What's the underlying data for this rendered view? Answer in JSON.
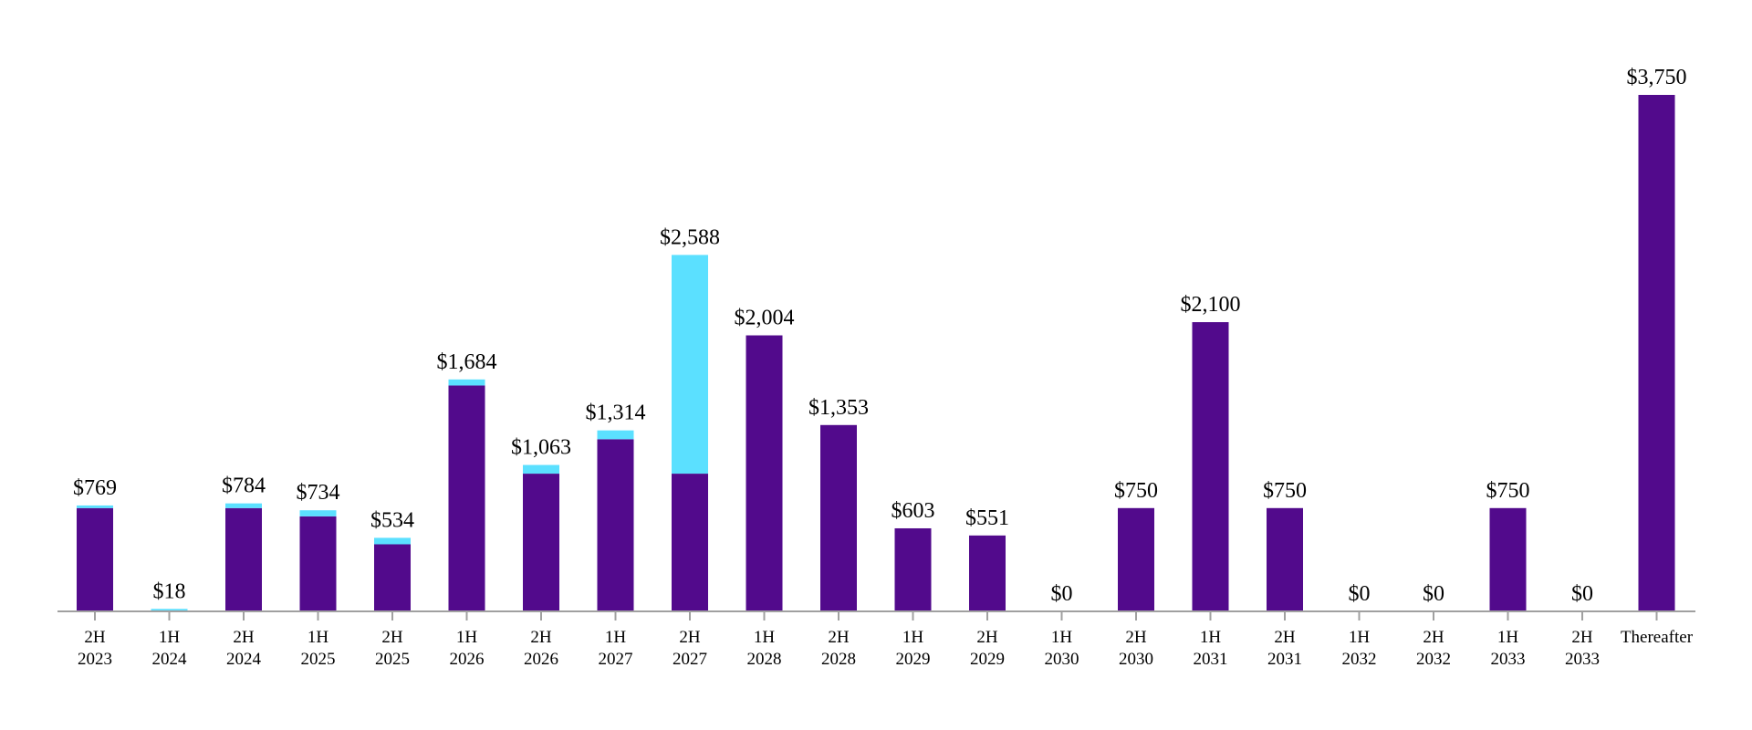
{
  "chart_data": {
    "type": "bar",
    "stacked": true,
    "title": "",
    "xlabel": "",
    "ylabel": "",
    "ylim": [
      0,
      3750
    ],
    "grid": false,
    "legend": "none",
    "colors": {
      "primary": "#520A8C",
      "secondary": "#5BE0FF",
      "axis": "#A0A0A0"
    },
    "categories": [
      [
        "2H",
        "2023"
      ],
      [
        "1H",
        "2024"
      ],
      [
        "2H",
        "2024"
      ],
      [
        "1H",
        "2025"
      ],
      [
        "2H",
        "2025"
      ],
      [
        "1H",
        "2026"
      ],
      [
        "2H",
        "2026"
      ],
      [
        "1H",
        "2027"
      ],
      [
        "2H",
        "2027"
      ],
      [
        "1H",
        "2028"
      ],
      [
        "2H",
        "2028"
      ],
      [
        "1H",
        "2029"
      ],
      [
        "2H",
        "2029"
      ],
      [
        "1H",
        "2030"
      ],
      [
        "2H",
        "2030"
      ],
      [
        "1H",
        "2031"
      ],
      [
        "2H",
        "2031"
      ],
      [
        "1H",
        "2032"
      ],
      [
        "2H",
        "2032"
      ],
      [
        "1H",
        "2033"
      ],
      [
        "2H",
        "2033"
      ],
      [
        "Thereafter"
      ]
    ],
    "series": [
      {
        "values": [
          750,
          0,
          750,
          690,
          487,
          1640,
          1000,
          1250,
          1000,
          2004,
          1353,
          603,
          551,
          0,
          750,
          2100,
          750,
          0,
          0,
          750,
          0,
          3750
        ]
      },
      {
        "values": [
          19,
          18,
          34,
          44,
          47,
          44,
          63,
          64,
          1588,
          0,
          0,
          0,
          0,
          0,
          0,
          0,
          0,
          0,
          0,
          0,
          0,
          0
        ]
      }
    ],
    "totals": [
      "$769",
      "$18",
      "$784",
      "$734",
      "$534",
      "$1,684",
      "$1,063",
      "$1,314",
      "$2,588",
      "$2,004",
      "$1,353",
      "$603",
      "$551",
      "$0",
      "$750",
      "$2,100",
      "$750",
      "$0",
      "$0",
      "$750",
      "$0",
      "$3,750"
    ]
  }
}
